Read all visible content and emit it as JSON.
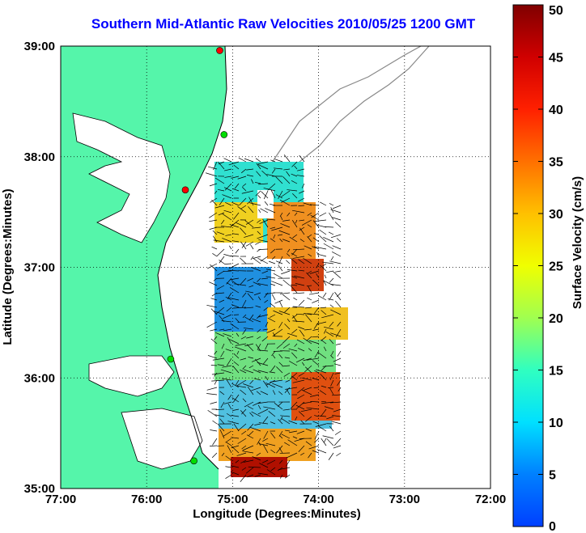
{
  "title": "Southern Mid-Atlantic Raw Velocities 2010/05/25 1200 GMT",
  "xlabel": "Longitude (Degrees:Minutes)",
  "ylabel": "Latitude (Degrees:Minutes)",
  "colorbar_label": "Surface Velocity (cm/s)",
  "x_ticks": [
    "77:00",
    "76:00",
    "75:00",
    "74:00",
    "73:00",
    "72:00"
  ],
  "y_ticks": [
    "39:00",
    "38:00",
    "37:00",
    "36:00",
    "35:00"
  ],
  "colorbar_ticks": [
    "50",
    "45",
    "40",
    "35",
    "30",
    "25",
    "20",
    "15",
    "10",
    "5",
    "0"
  ],
  "extent": {
    "lon_min": -77,
    "lon_max": -72,
    "lat_min": 35,
    "lat_max": 39
  },
  "colorbar_range": [
    0,
    50
  ],
  "colors": {
    "land": "#55f5aa",
    "title": "#0000ff",
    "grid": "#000000"
  },
  "grid": "dotted",
  "stations": [
    {
      "lon": -75.15,
      "lat": 38.96,
      "color": "#ff0000"
    },
    {
      "lon": -75.1,
      "lat": 38.2,
      "color": "#00dd00"
    },
    {
      "lon": -75.55,
      "lat": 37.7,
      "color": "#ff0000"
    },
    {
      "lon": -75.72,
      "lat": 36.17,
      "color": "#00dd00"
    },
    {
      "lon": -75.45,
      "lat": 35.25,
      "color": "#00dd00"
    }
  ]
}
